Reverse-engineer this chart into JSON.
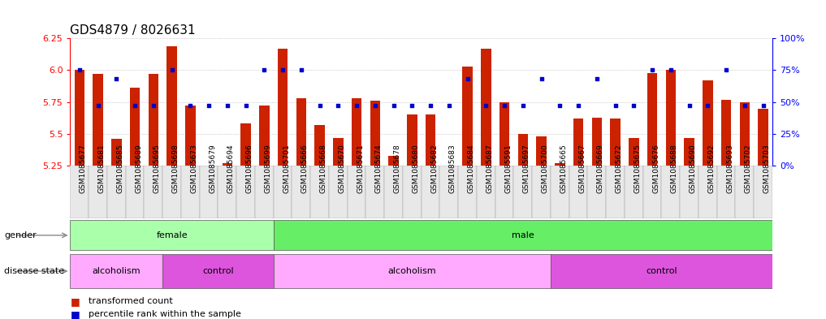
{
  "title": "GDS4879 / 8026631",
  "samples": [
    "GSM1085677",
    "GSM1085681",
    "GSM1085685",
    "GSM1085689",
    "GSM1085695",
    "GSM1085698",
    "GSM1085673",
    "GSM1085679",
    "GSM1085694",
    "GSM1085696",
    "GSM1085699",
    "GSM1085701",
    "GSM1085666",
    "GSM1085668",
    "GSM1085670",
    "GSM1085671",
    "GSM1085674",
    "GSM1085678",
    "GSM1085680",
    "GSM1085682",
    "GSM1085683",
    "GSM1085684",
    "GSM1085687",
    "GSM1085591",
    "GSM1085697",
    "GSM1085700",
    "GSM1085665",
    "GSM1085667",
    "GSM1085669",
    "GSM1085672",
    "GSM1085675",
    "GSM1085676",
    "GSM1085688",
    "GSM1085690",
    "GSM1085692",
    "GSM1085693",
    "GSM1085702",
    "GSM1085703"
  ],
  "bar_values": [
    6.0,
    5.97,
    5.46,
    5.86,
    5.97,
    6.19,
    5.72,
    5.25,
    5.27,
    5.58,
    5.72,
    6.17,
    5.78,
    5.57,
    5.47,
    5.78,
    5.76,
    5.33,
    5.65,
    5.65,
    5.25,
    6.03,
    6.17,
    5.75,
    5.5,
    5.48,
    5.27,
    5.62,
    5.63,
    5.62,
    5.47,
    5.98,
    6.0,
    5.47,
    5.92,
    5.77,
    5.75,
    5.7
  ],
  "percentile_values": [
    75,
    47,
    68,
    47,
    47,
    75,
    47,
    47,
    47,
    47,
    75,
    75,
    75,
    47,
    47,
    47,
    47,
    47,
    47,
    47,
    47,
    68,
    47,
    47,
    47,
    68,
    47,
    47,
    68,
    47,
    47,
    75,
    75,
    47,
    47,
    75,
    47,
    47
  ],
  "ylim_left": [
    5.25,
    6.25
  ],
  "ylim_right": [
    0,
    100
  ],
  "yticks_left": [
    5.25,
    5.5,
    5.75,
    6.0,
    6.25
  ],
  "yticks_right": [
    0,
    25,
    50,
    75,
    100
  ],
  "bar_color": "#cc2200",
  "dot_color": "#0000cc",
  "background_color": "#ffffff",
  "gender_groups": [
    {
      "label": "female",
      "start": 0,
      "end": 11,
      "color": "#aaffaa"
    },
    {
      "label": "male",
      "start": 11,
      "end": 38,
      "color": "#66ee66"
    }
  ],
  "disease_groups": [
    {
      "label": "alcoholism",
      "start": 0,
      "end": 5,
      "color": "#ffaaff"
    },
    {
      "label": "control",
      "start": 5,
      "end": 11,
      "color": "#dd55dd"
    },
    {
      "label": "alcoholism",
      "start": 11,
      "end": 26,
      "color": "#ffaaff"
    },
    {
      "label": "control",
      "start": 26,
      "end": 38,
      "color": "#dd55dd"
    }
  ],
  "grid_color": "#aaaaaa",
  "title_fontsize": 11,
  "sample_fontsize": 6.5,
  "bar_width": 0.55
}
